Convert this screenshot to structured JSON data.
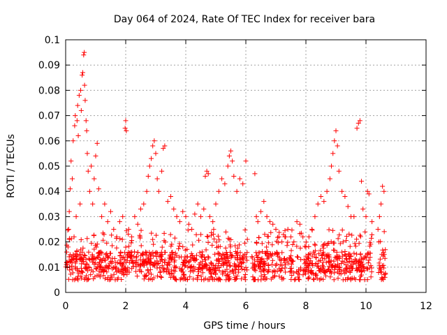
{
  "chart_data": {
    "type": "scatter",
    "title": "Day 064 of 2024, Rate Of TEC Index for receiver bara",
    "xlabel": "GPS time / hours",
    "ylabel": "ROTI / TECUs",
    "xlim": [
      0,
      12
    ],
    "ylim": [
      0,
      0.1
    ],
    "x_ticks": [
      "0",
      "2",
      "4",
      "6",
      "8",
      "10",
      "12"
    ],
    "y_ticks": [
      "0",
      "0.01",
      "0.02",
      "0.03",
      "0.04",
      "0.05",
      "0.06",
      "0.07",
      "0.08",
      "0.09",
      "0.1"
    ],
    "grid": true,
    "legend": "none",
    "marker": "plus",
    "color": "#ff0000",
    "series": [
      {
        "points": [
          [
            0.05,
            0.012
          ],
          [
            0.08,
            0.018
          ],
          [
            0.1,
            0.025
          ],
          [
            0.12,
            0.032
          ],
          [
            0.15,
            0.041
          ],
          [
            0.18,
            0.052
          ],
          [
            0.2,
            0.014
          ],
          [
            0.22,
            0.045
          ],
          [
            0.25,
            0.06
          ],
          [
            0.28,
            0.022
          ],
          [
            0.3,
            0.066
          ],
          [
            0.32,
            0.07
          ],
          [
            0.35,
            0.03
          ],
          [
            0.38,
            0.068
          ],
          [
            0.4,
            0.074
          ],
          [
            0.42,
            0.062
          ],
          [
            0.45,
            0.078
          ],
          [
            0.48,
            0.035
          ],
          [
            0.5,
            0.08
          ],
          [
            0.52,
            0.072
          ],
          [
            0.55,
            0.086
          ],
          [
            0.57,
            0.087
          ],
          [
            0.6,
            0.094
          ],
          [
            0.62,
            0.095
          ],
          [
            0.63,
            0.082
          ],
          [
            0.65,
            0.076
          ],
          [
            0.68,
            0.068
          ],
          [
            0.7,
            0.064
          ],
          [
            0.72,
            0.055
          ],
          [
            0.75,
            0.048
          ],
          [
            0.8,
            0.04
          ],
          [
            0.85,
            0.05
          ],
          [
            0.9,
            0.035
          ],
          [
            0.95,
            0.045
          ],
          [
            1.0,
            0.054
          ],
          [
            1.05,
            0.059
          ],
          [
            1.1,
            0.041
          ],
          [
            1.2,
            0.03
          ],
          [
            1.3,
            0.035
          ],
          [
            1.4,
            0.028
          ],
          [
            1.5,
            0.032
          ],
          [
            1.6,
            0.025
          ],
          [
            1.7,
            0.022
          ],
          [
            1.8,
            0.028
          ],
          [
            1.9,
            0.03
          ],
          [
            1.98,
            0.065
          ],
          [
            2.0,
            0.068
          ],
          [
            2.02,
            0.064
          ],
          [
            2.1,
            0.025
          ],
          [
            2.2,
            0.022
          ],
          [
            2.3,
            0.03
          ],
          [
            2.4,
            0.027
          ],
          [
            2.5,
            0.033
          ],
          [
            2.6,
            0.035
          ],
          [
            2.7,
            0.04
          ],
          [
            2.75,
            0.046
          ],
          [
            2.8,
            0.05
          ],
          [
            2.85,
            0.053
          ],
          [
            2.9,
            0.058
          ],
          [
            2.95,
            0.06
          ],
          [
            3.0,
            0.055
          ],
          [
            3.05,
            0.045
          ],
          [
            3.1,
            0.04
          ],
          [
            3.2,
            0.048
          ],
          [
            3.25,
            0.057
          ],
          [
            3.3,
            0.058
          ],
          [
            3.4,
            0.036
          ],
          [
            3.5,
            0.038
          ],
          [
            3.6,
            0.033
          ],
          [
            3.7,
            0.03
          ],
          [
            3.8,
            0.028
          ],
          [
            3.9,
            0.032
          ],
          [
            4.0,
            0.03
          ],
          [
            4.1,
            0.027
          ],
          [
            4.2,
            0.025
          ],
          [
            4.3,
            0.031
          ],
          [
            4.4,
            0.035
          ],
          [
            4.5,
            0.03
          ],
          [
            4.6,
            0.033
          ],
          [
            4.65,
            0.046
          ],
          [
            4.7,
            0.048
          ],
          [
            4.75,
            0.047
          ],
          [
            4.8,
            0.03
          ],
          [
            4.9,
            0.028
          ],
          [
            5.0,
            0.035
          ],
          [
            5.1,
            0.04
          ],
          [
            5.2,
            0.045
          ],
          [
            5.3,
            0.043
          ],
          [
            5.4,
            0.05
          ],
          [
            5.45,
            0.054
          ],
          [
            5.5,
            0.056
          ],
          [
            5.55,
            0.052
          ],
          [
            5.6,
            0.046
          ],
          [
            5.7,
            0.04
          ],
          [
            5.8,
            0.045
          ],
          [
            5.9,
            0.043
          ],
          [
            6.0,
            0.052
          ],
          [
            6.05,
            0.021
          ],
          [
            6.3,
            0.047
          ],
          [
            6.35,
            0.03
          ],
          [
            6.4,
            0.028
          ],
          [
            6.5,
            0.032
          ],
          [
            6.6,
            0.036
          ],
          [
            6.7,
            0.03
          ],
          [
            6.8,
            0.028
          ],
          [
            6.9,
            0.027
          ],
          [
            7.0,
            0.025
          ],
          [
            7.1,
            0.022
          ],
          [
            7.2,
            0.02
          ],
          [
            7.3,
            0.022
          ],
          [
            7.4,
            0.025
          ],
          [
            7.5,
            0.022
          ],
          [
            7.6,
            0.02
          ],
          [
            7.7,
            0.028
          ],
          [
            7.8,
            0.027
          ],
          [
            7.9,
            0.022
          ],
          [
            8.0,
            0.018
          ],
          [
            8.1,
            0.022
          ],
          [
            8.2,
            0.025
          ],
          [
            8.3,
            0.03
          ],
          [
            8.4,
            0.035
          ],
          [
            8.5,
            0.038
          ],
          [
            8.6,
            0.036
          ],
          [
            8.7,
            0.04
          ],
          [
            8.8,
            0.045
          ],
          [
            8.85,
            0.05
          ],
          [
            8.9,
            0.055
          ],
          [
            8.95,
            0.06
          ],
          [
            9.0,
            0.064
          ],
          [
            9.05,
            0.058
          ],
          [
            9.1,
            0.048
          ],
          [
            9.2,
            0.04
          ],
          [
            9.3,
            0.038
          ],
          [
            9.4,
            0.034
          ],
          [
            9.5,
            0.03
          ],
          [
            9.6,
            0.03
          ],
          [
            9.7,
            0.065
          ],
          [
            9.75,
            0.067
          ],
          [
            9.8,
            0.068
          ],
          [
            9.85,
            0.044
          ],
          [
            9.9,
            0.033
          ],
          [
            10.0,
            0.03
          ],
          [
            10.05,
            0.04
          ],
          [
            10.1,
            0.039
          ],
          [
            10.2,
            0.028
          ],
          [
            10.4,
            0.025
          ],
          [
            10.45,
            0.03
          ],
          [
            10.5,
            0.035
          ],
          [
            10.55,
            0.042
          ],
          [
            10.6,
            0.04
          ]
        ]
      }
    ],
    "dense_band": {
      "x_segments": [
        [
          0.0,
          6.05
        ],
        [
          6.2,
          10.2
        ],
        [
          10.4,
          10.65
        ]
      ],
      "y_range": [
        0.005,
        0.025
      ],
      "mean": 0.012
    }
  }
}
